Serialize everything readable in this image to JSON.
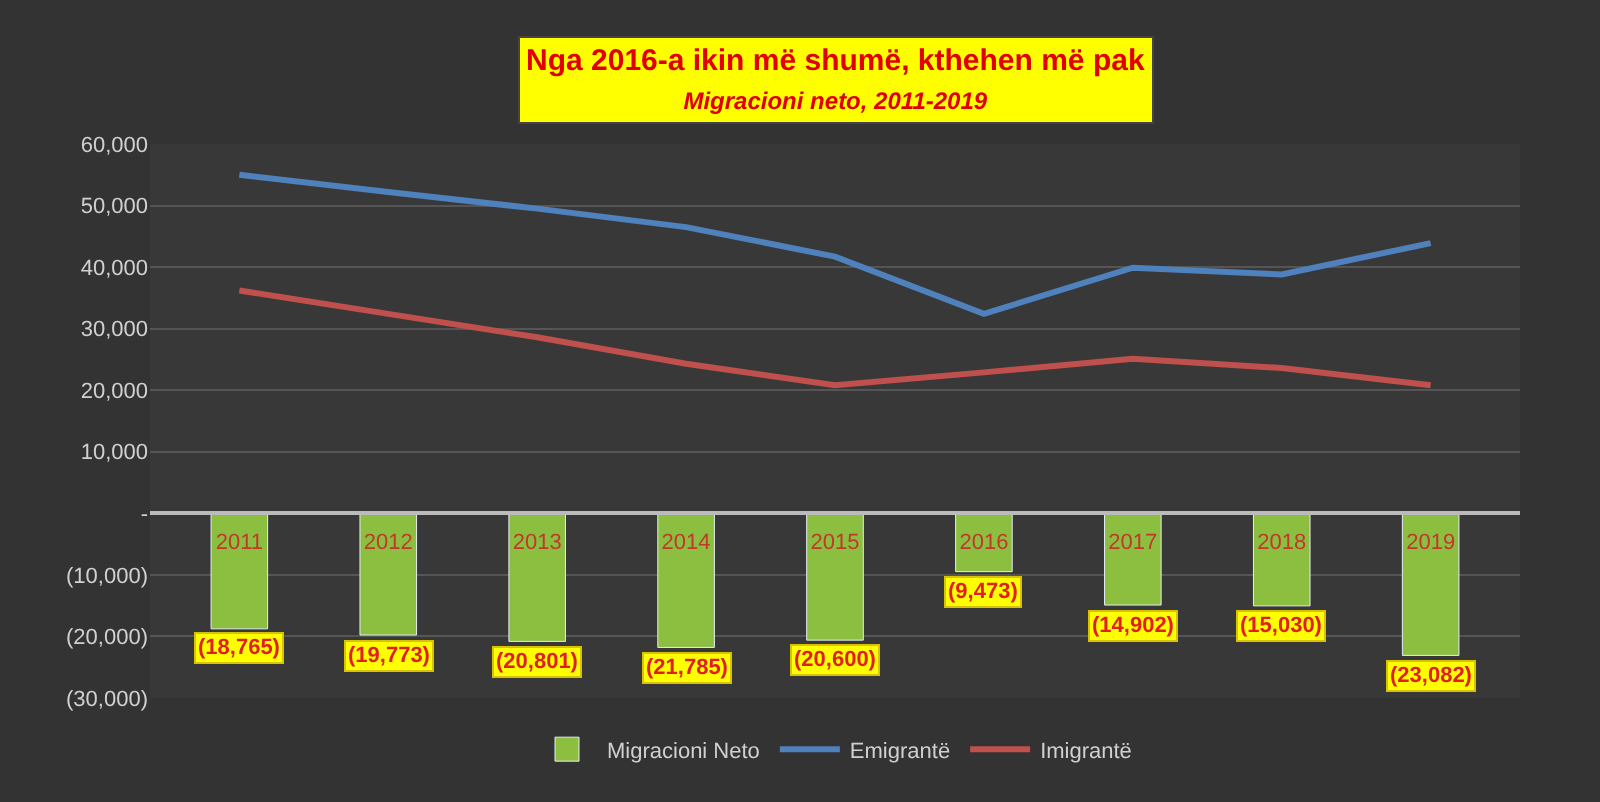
{
  "chart_data": {
    "type": "bar",
    "title": "Nga 2016-a ikin më shumë, kthehen më pak",
    "subtitle": "Migracioni neto, 2011-2019",
    "categories": [
      "2011",
      "2012",
      "2013",
      "2014",
      "2015",
      "2016",
      "2017",
      "2018",
      "2019"
    ],
    "series": [
      {
        "name": "Migracioni Neto",
        "color": "#8cbf3f",
        "values": [
          -18765,
          -19773,
          -20801,
          -21785,
          -20600,
          -9473,
          -14902,
          -15030,
          -23082
        ],
        "value_labels": [
          "(18,765)",
          "(19,773)",
          "(20,801)",
          "(21,785)",
          "(20,600)",
          "(9,473)",
          "(14,902)",
          "(15,030)",
          "(23,082)"
        ]
      },
      {
        "name": "Emigrantë",
        "type": "line",
        "color": "#4f81bd",
        "values": [
          55000,
          52200,
          49500,
          46500,
          41700,
          32400,
          39900,
          38800,
          43900
        ]
      },
      {
        "name": "Imigrantë",
        "type": "line",
        "color": "#c0504d",
        "values": [
          36200,
          32400,
          28600,
          24300,
          20800,
          22900,
          25100,
          23600,
          20800
        ]
      }
    ],
    "ylim": [
      -30000,
      60000
    ],
    "yticks": [
      {
        "value": -30000,
        "label": "(30,000)"
      },
      {
        "value": -20000,
        "label": "(20,000)"
      },
      {
        "value": -10000,
        "label": "(10,000)"
      },
      {
        "value": 0,
        "label": "-"
      },
      {
        "value": 10000,
        "label": "10,000"
      },
      {
        "value": 20000,
        "label": "20,000"
      },
      {
        "value": 30000,
        "label": "30,000"
      },
      {
        "value": 40000,
        "label": "40,000"
      },
      {
        "value": 50000,
        "label": "50,000"
      },
      {
        "value": 60000,
        "label": "60,000"
      }
    ],
    "grid": "y",
    "legend": "bottom",
    "line_style": "solid",
    "marker": "none"
  }
}
